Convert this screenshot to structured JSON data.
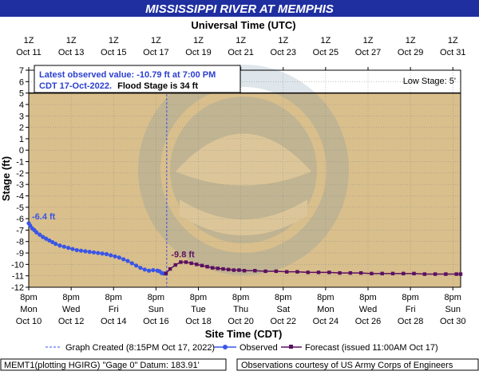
{
  "colors": {
    "title_bg": "#1f2fa0",
    "plot_bg": "#d9bf8c",
    "low_band_bg": "#ffffff",
    "observed": "#3a55e6",
    "forecast": "#5b1060",
    "crest_obs_label": "#3a55e6",
    "crest_fcst_label": "#5b1060",
    "grid": "#8a8a8a",
    "frame": "#000000",
    "info_text": "#2a3fd0"
  },
  "header": {
    "title": "MISSISSIPPI RIVER AT MEMPHIS",
    "top_axis_title": "Universal Time (UTC)"
  },
  "info_box": {
    "line1": "Latest observed value: -10.79 ft at 7:00 PM",
    "line2a": "CDT 17-Oct-2022.",
    "line2b": "Flood Stage is 34 ft"
  },
  "low_stage_label": "Low Stage:  5'",
  "legend": {
    "graph_created": "Graph Created (8:15PM Oct 17, 2022)",
    "observed": "Observed",
    "forecast": "Forecast (issued 11:00AM Oct 17)"
  },
  "footer": {
    "left": "MEMT1(plotting HGIRG) \"Gage 0\" Datum: 183.91'",
    "right": "Observations courtesy of US Army Corps of Engineers"
  },
  "chart_data": {
    "type": "line",
    "xlabel": "Site Time (CDT)",
    "ylabel": "Stage (ft)",
    "ylim": [
      -12,
      7
    ],
    "yticks": [
      7,
      6,
      5,
      4,
      3,
      2,
      1,
      0,
      -1,
      -2,
      -3,
      -4,
      -5,
      -6,
      -7,
      -8,
      -9,
      -10,
      -11,
      -12
    ],
    "xlim_days": [
      10.8333,
      31.2
    ],
    "low_stage": 5,
    "flood_stage": 34,
    "graph_created_day": 17.34,
    "grid": true,
    "bottom_ticks": [
      {
        "day": 10.8333,
        "l1": "8pm",
        "l2": "Mon",
        "l3": "Oct 10"
      },
      {
        "day": 12.8333,
        "l1": "8pm",
        "l2": "Wed",
        "l3": "Oct 12"
      },
      {
        "day": 14.8333,
        "l1": "8pm",
        "l2": "Fri",
        "l3": "Oct 14"
      },
      {
        "day": 16.8333,
        "l1": "8pm",
        "l2": "Sun",
        "l3": "Oct 16"
      },
      {
        "day": 18.8333,
        "l1": "8pm",
        "l2": "Tue",
        "l3": "Oct 18"
      },
      {
        "day": 20.8333,
        "l1": "8pm",
        "l2": "Thu",
        "l3": "Oct 20"
      },
      {
        "day": 22.8333,
        "l1": "8pm",
        "l2": "Sat",
        "l3": "Oct 22"
      },
      {
        "day": 24.8333,
        "l1": "8pm",
        "l2": "Mon",
        "l3": "Oct 24"
      },
      {
        "day": 26.8333,
        "l1": "8pm",
        "l2": "Wed",
        "l3": "Oct 26"
      },
      {
        "day": 28.8333,
        "l1": "8pm",
        "l2": "Fri",
        "l3": "Oct 28"
      },
      {
        "day": 30.8333,
        "l1": "8pm",
        "l2": "Sun",
        "l3": "Oct 30"
      }
    ],
    "top_ticks": [
      {
        "day": 10.8333,
        "l1": "1Z",
        "l2": "Oct 11"
      },
      {
        "day": 12.8333,
        "l1": "1Z",
        "l2": "Oct 13"
      },
      {
        "day": 14.8333,
        "l1": "1Z",
        "l2": "Oct 15"
      },
      {
        "day": 16.8333,
        "l1": "1Z",
        "l2": "Oct 17"
      },
      {
        "day": 18.8333,
        "l1": "1Z",
        "l2": "Oct 19"
      },
      {
        "day": 20.8333,
        "l1": "1Z",
        "l2": "Oct 21"
      },
      {
        "day": 22.8333,
        "l1": "1Z",
        "l2": "Oct 23"
      },
      {
        "day": 24.8333,
        "l1": "1Z",
        "l2": "Oct 25"
      },
      {
        "day": 26.8333,
        "l1": "1Z",
        "l2": "Oct 27"
      },
      {
        "day": 28.8333,
        "l1": "1Z",
        "l2": "Oct 29"
      },
      {
        "day": 30.8333,
        "l1": "1Z",
        "l2": "Oct 31"
      }
    ],
    "crest_labels": [
      {
        "text": "-6.4 ft",
        "series": "observed"
      },
      {
        "text": "-9.8 ft",
        "series": "forecast"
      }
    ],
    "series": [
      {
        "name": "Observed",
        "day": [
          10.8333,
          10.9,
          11.0,
          11.1,
          11.2,
          11.35,
          11.5,
          11.65,
          11.8,
          11.95,
          12.1,
          12.3,
          12.5,
          12.7,
          12.9,
          13.1,
          13.3,
          13.5,
          13.7,
          13.9,
          14.1,
          14.3,
          14.5,
          14.7,
          14.9,
          15.1,
          15.3,
          15.5,
          15.7,
          15.9,
          16.1,
          16.3,
          16.5,
          16.7,
          16.9,
          17.0,
          17.1,
          17.2,
          17.3
        ],
        "stage": [
          -6.4,
          -6.6,
          -6.85,
          -7.0,
          -7.2,
          -7.4,
          -7.6,
          -7.75,
          -7.9,
          -8.05,
          -8.2,
          -8.35,
          -8.45,
          -8.55,
          -8.65,
          -8.75,
          -8.8,
          -8.85,
          -8.9,
          -8.95,
          -9.0,
          -9.05,
          -9.1,
          -9.2,
          -9.3,
          -9.4,
          -9.55,
          -9.7,
          -9.9,
          -10.1,
          -10.3,
          -10.45,
          -10.55,
          -10.5,
          -10.55,
          -10.6,
          -10.75,
          -10.8,
          -10.79
        ]
      },
      {
        "name": "Forecast",
        "day": [
          17.3,
          17.5,
          17.75,
          18.0,
          18.25,
          18.5,
          18.75,
          19.0,
          19.25,
          19.5,
          19.75,
          20.0,
          20.25,
          20.5,
          20.75,
          21.0,
          21.5,
          22.0,
          22.5,
          23.0,
          23.5,
          24.0,
          24.5,
          25.0,
          25.5,
          26.0,
          26.5,
          27.0,
          27.5,
          28.0,
          28.5,
          29.0,
          29.5,
          30.0,
          30.5,
          31.0,
          31.2
        ],
        "stage": [
          -10.79,
          -10.4,
          -10.05,
          -9.8,
          -9.8,
          -9.9,
          -10.0,
          -10.1,
          -10.2,
          -10.3,
          -10.35,
          -10.4,
          -10.45,
          -10.5,
          -10.5,
          -10.55,
          -10.55,
          -10.6,
          -10.6,
          -10.65,
          -10.65,
          -10.7,
          -10.7,
          -10.7,
          -10.75,
          -10.75,
          -10.75,
          -10.8,
          -10.8,
          -10.8,
          -10.8,
          -10.8,
          -10.85,
          -10.85,
          -10.85,
          -10.85,
          -10.85
        ]
      }
    ]
  }
}
